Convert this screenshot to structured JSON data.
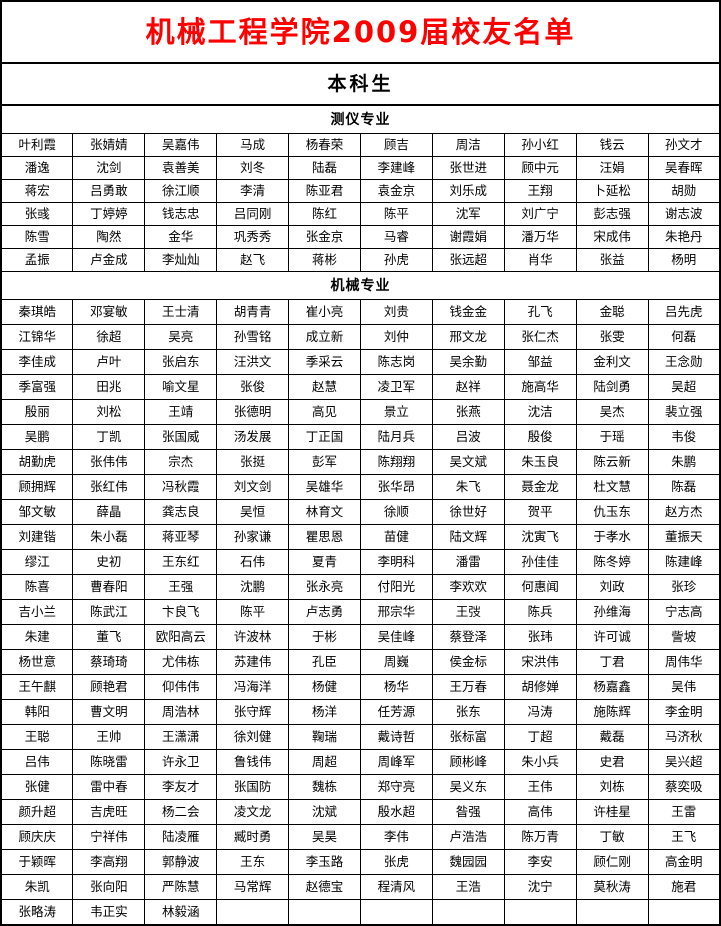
{
  "page_title": "机械工程学院2009届校友名单",
  "colors": {
    "title_red": "#ff0000",
    "border": "#000000",
    "background": "#ffffff"
  },
  "table": {
    "columns": 10,
    "degree_header": "本科生",
    "majors": [
      {
        "name": "测仪专业",
        "rows": [
          [
            "叶利霞",
            "张婧婧",
            "吴嘉伟",
            "马成",
            "杨春荣",
            "顾吉",
            "周洁",
            "孙小红",
            "钱云",
            "孙文才"
          ],
          [
            "潘逸",
            "沈剑",
            "袁善美",
            "刘冬",
            "陆磊",
            "李建峰",
            "张世进",
            "顾中元",
            "汪娟",
            "吴春晖"
          ],
          [
            "蒋宏",
            "吕勇敢",
            "徐江顺",
            "李清",
            "陈亚君",
            "袁金京",
            "刘乐成",
            "王翔",
            "卜延松",
            "胡勋"
          ],
          [
            "张彧",
            "丁婷婷",
            "钱志忠",
            "吕同刚",
            "陈红",
            "陈平",
            "沈军",
            "刘广宁",
            "彭志强",
            "谢志波"
          ],
          [
            "陈雪",
            "陶然",
            "金华",
            "巩秀秀",
            "张金京",
            "马睿",
            "谢霞娟",
            "潘万华",
            "宋成伟",
            "朱艳丹"
          ],
          [
            "孟振",
            "卢金成",
            "李灿灿",
            "赵飞",
            "蒋彬",
            "孙虎",
            "张远超",
            "肖华",
            "张益",
            "杨明"
          ]
        ]
      },
      {
        "name": "机械专业",
        "rows": [
          [
            "秦琪皓",
            "邓宴敏",
            "王士清",
            "胡青青",
            "崔小亮",
            "刘贵",
            "钱金金",
            "孔飞",
            "金聪",
            "吕先虎"
          ],
          [
            "江锦华",
            "徐超",
            "吴亮",
            "孙雪铭",
            "成立新",
            "刘仲",
            "邢文龙",
            "张仁杰",
            "张雯",
            "何磊"
          ],
          [
            "李佳成",
            "卢叶",
            "张启东",
            "汪洪文",
            "季采云",
            "陈志岗",
            "吴余勤",
            "邹益",
            "金利文",
            "王念勋"
          ],
          [
            "季富强",
            "田兆",
            "喻文星",
            "张俊",
            "赵慧",
            "凌卫军",
            "赵祥",
            "施高华",
            "陆剑勇",
            "吴超"
          ],
          [
            "殷丽",
            "刘松",
            "王靖",
            "张德明",
            "高见",
            "景立",
            "张燕",
            "沈洁",
            "吴杰",
            "裴立强"
          ],
          [
            "吴鹏",
            "丁凯",
            "张国威",
            "汤发展",
            "丁正国",
            "陆月兵",
            "吕波",
            "殷俊",
            "于瑶",
            "韦俊"
          ],
          [
            "胡勤虎",
            "张伟伟",
            "宗杰",
            "张挺",
            "彭军",
            "陈翔翔",
            "吴文斌",
            "朱玉良",
            "陈云新",
            "朱鹏"
          ],
          [
            "顾拥辉",
            "张红伟",
            "冯秋霞",
            "刘文剑",
            "吴雄华",
            "张华昂",
            "朱飞",
            "聂金龙",
            "杜文慧",
            "陈磊"
          ],
          [
            "邹文敏",
            "薛晶",
            "龚志良",
            "吴恒",
            "林育文",
            "徐顺",
            "徐世好",
            "贺平",
            "仇玉东",
            "赵方杰"
          ],
          [
            "刘建锴",
            "朱小磊",
            "蒋亚琴",
            "孙家谦",
            "瞿思恩",
            "苗健",
            "陆文辉",
            "沈寅飞",
            "于孝水",
            "董振天"
          ],
          [
            "缪江",
            "史初",
            "王东红",
            "石伟",
            "夏青",
            "李明科",
            "潘雷",
            "孙佳佳",
            "陈冬婷",
            "陈建峰"
          ],
          [
            "陈喜",
            "曹春阳",
            "王强",
            "沈鹏",
            "张永亮",
            "付阳光",
            "李欢欢",
            "何惠闻",
            "刘政",
            "张珍"
          ],
          [
            "吉小兰",
            "陈武江",
            "卞良飞",
            "陈平",
            "卢志勇",
            "邢宗华",
            "王弢",
            "陈兵",
            "孙维海",
            "宁志高"
          ],
          [
            "朱建",
            "董飞",
            "欧阳高云",
            "许波林",
            "于彬",
            "吴佳峰",
            "蔡登泽",
            "张玮",
            "许可诚",
            "訾坡"
          ],
          [
            "杨世意",
            "蔡琦琦",
            "尤伟栋",
            "苏建伟",
            "孔臣",
            "周巍",
            "侯金标",
            "宋洪伟",
            "丁君",
            "周伟华"
          ],
          [
            "王午麒",
            "顾艳君",
            "仰伟伟",
            "冯海洋",
            "杨健",
            "杨华",
            "王万春",
            "胡修婵",
            "杨嘉鑫",
            "吴伟"
          ],
          [
            "韩阳",
            "曹文明",
            "周浩林",
            "张守辉",
            "杨洋",
            "任芳源",
            "张东",
            "冯涛",
            "施陈辉",
            "李金明"
          ],
          [
            "王聪",
            "王帅",
            "王潇潇",
            "徐刘健",
            "鞠瑞",
            "戴诗哲",
            "张标富",
            "丁超",
            "戴磊",
            "马济秋"
          ],
          [
            "吕伟",
            "陈晓雷",
            "许永卫",
            "鲁钱伟",
            "周超",
            "周峰军",
            "顾彬峰",
            "朱小兵",
            "史君",
            "吴兴超"
          ],
          [
            "张健",
            "雷中春",
            "李友才",
            "张国防",
            "魏栋",
            "郑守亮",
            "吴义东",
            "王伟",
            "刘栋",
            "蔡奕吸"
          ],
          [
            "颜升超",
            "吉虎旺",
            "杨二会",
            "凌文龙",
            "沈斌",
            "殷水超",
            "昝强",
            "高伟",
            "许桂星",
            "王雷"
          ],
          [
            "顾庆庆",
            "宁祥伟",
            "陆凌雁",
            "臧时勇",
            "吴昊",
            "李伟",
            "卢浩浩",
            "陈万青",
            "丁敏",
            "王飞"
          ],
          [
            "于颖晖",
            "李高翔",
            "郭静波",
            "王东",
            "李玉路",
            "张虎",
            "魏园园",
            "李安",
            "顾仁刚",
            "高金明"
          ],
          [
            "朱凯",
            "张向阳",
            "严陈慧",
            "马常辉",
            "赵德宝",
            "程清风",
            "王浩",
            "沈宁",
            "莫秋涛",
            "施君"
          ],
          [
            "张略涛",
            "韦正实",
            "林毅涵",
            "",
            "",
            "",
            "",
            "",
            "",
            ""
          ]
        ]
      }
    ]
  }
}
